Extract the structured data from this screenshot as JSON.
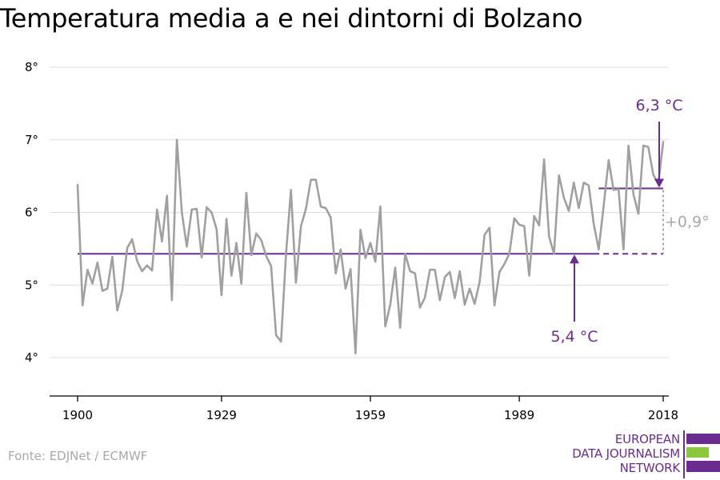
{
  "title": "Temperatura media a e nei dintorni di Bolzano",
  "source": "Fonte: EDJNet / ECMWF",
  "logo": {
    "lines": [
      "EUROPEAN",
      "DATA JOURNALISM",
      "NETWORK"
    ],
    "colors": {
      "purple": "#6a2c91",
      "green": "#8dc63f"
    }
  },
  "colors": {
    "series": "#a0a0a0",
    "reference": "#6a2c91",
    "annotation": "#6a2c91",
    "difference": "#a8a8a8",
    "grid": "#dcdcdc",
    "axis": "#000000"
  },
  "chart_data": {
    "type": "line",
    "title": "Temperatura media a e nei dintorni di Bolzano",
    "xlabel": "",
    "ylabel": "",
    "xlim": [
      1900,
      2018
    ],
    "ylim": [
      3.5,
      8.1
    ],
    "x_ticks": [
      {
        "value": 1900,
        "label": "1900"
      },
      {
        "value": 1929,
        "label": "1929"
      },
      {
        "value": 1959,
        "label": "1959"
      },
      {
        "value": 1989,
        "label": "1989"
      },
      {
        "value": 2018,
        "label": "2018"
      }
    ],
    "y_ticks": [
      {
        "value": 4,
        "label": "4°"
      },
      {
        "value": 5,
        "label": "5°"
      },
      {
        "value": 6,
        "label": "6°"
      },
      {
        "value": 7,
        "label": "7°"
      },
      {
        "value": 8,
        "label": "8°"
      }
    ],
    "grid": "horizontal",
    "legend": "none",
    "series": [
      {
        "x": [
          1900,
          1901,
          1902,
          1903,
          1904,
          1905,
          1906,
          1907,
          1908,
          1909,
          1910,
          1911,
          1912,
          1913,
          1914,
          1915,
          1916,
          1917,
          1918,
          1919,
          1920,
          1921,
          1922,
          1923,
          1924,
          1925,
          1926,
          1927,
          1928,
          1929,
          1930,
          1931,
          1932,
          1933,
          1934,
          1935,
          1936,
          1937,
          1938,
          1939,
          1940,
          1941,
          1942,
          1943,
          1944,
          1945,
          1946,
          1947,
          1948,
          1949,
          1950,
          1951,
          1952,
          1953,
          1954,
          1955,
          1956,
          1957,
          1958,
          1959,
          1960,
          1961,
          1962,
          1963,
          1964,
          1965,
          1966,
          1967,
          1968,
          1969,
          1970,
          1971,
          1972,
          1973,
          1974,
          1975,
          1976,
          1977,
          1978,
          1979,
          1980,
          1981,
          1982,
          1983,
          1984,
          1985,
          1986,
          1987,
          1988,
          1989,
          1990,
          1991,
          1992,
          1993,
          1994,
          1995,
          1996,
          1997,
          1998,
          1999,
          2000,
          2001,
          2002,
          2003,
          2004,
          2005,
          2006,
          2007,
          2008,
          2009,
          2010,
          2011,
          2012,
          2013,
          2014,
          2015,
          2016,
          2017,
          2018
        ],
        "y": [
          6.38,
          4.72,
          5.21,
          5.02,
          5.31,
          4.92,
          4.95,
          5.39,
          4.65,
          4.92,
          5.51,
          5.63,
          5.33,
          5.19,
          5.27,
          5.2,
          6.04,
          5.6,
          6.23,
          4.79,
          7.0,
          6.0,
          5.53,
          6.04,
          6.05,
          5.38,
          6.07,
          6.0,
          5.77,
          4.86,
          5.91,
          5.13,
          5.58,
          5.02,
          6.27,
          5.41,
          5.71,
          5.62,
          5.4,
          5.26,
          4.31,
          4.22,
          5.42,
          6.31,
          5.03,
          5.81,
          6.05,
          6.45,
          6.45,
          6.08,
          6.06,
          5.93,
          5.16,
          5.49,
          4.95,
          5.22,
          4.06,
          5.76,
          5.37,
          5.58,
          5.32,
          6.08,
          4.43,
          4.73,
          5.24,
          4.41,
          5.43,
          5.19,
          5.16,
          4.69,
          4.83,
          5.21,
          5.21,
          4.79,
          5.11,
          5.18,
          4.82,
          5.19,
          4.73,
          4.95,
          4.74,
          5.04,
          5.69,
          5.79,
          4.72,
          5.18,
          5.29,
          5.43,
          5.92,
          5.83,
          5.81,
          5.13,
          5.95,
          5.82,
          6.73,
          5.67,
          5.43,
          6.51,
          6.2,
          6.02,
          6.41,
          6.06,
          6.41,
          6.37,
          5.84,
          5.49,
          6.09,
          6.72,
          6.31,
          6.32,
          5.49,
          6.92,
          6.25,
          5.98,
          6.92,
          6.9,
          6.52,
          6.39,
          6.97
        ]
      }
    ],
    "reference_lines": [
      {
        "label": "5,4 °C",
        "value": 5.43,
        "x_start": 1900,
        "x_end": 2018,
        "x_dashed_from": 2004
      },
      {
        "label": "6,3 °C",
        "value": 6.33,
        "x_start": 2005,
        "x_end": 2018
      }
    ],
    "annotations": {
      "difference_label": "+0,9°",
      "baseline_label": "5,4 °C",
      "recent_label": "6,3 °C"
    }
  }
}
